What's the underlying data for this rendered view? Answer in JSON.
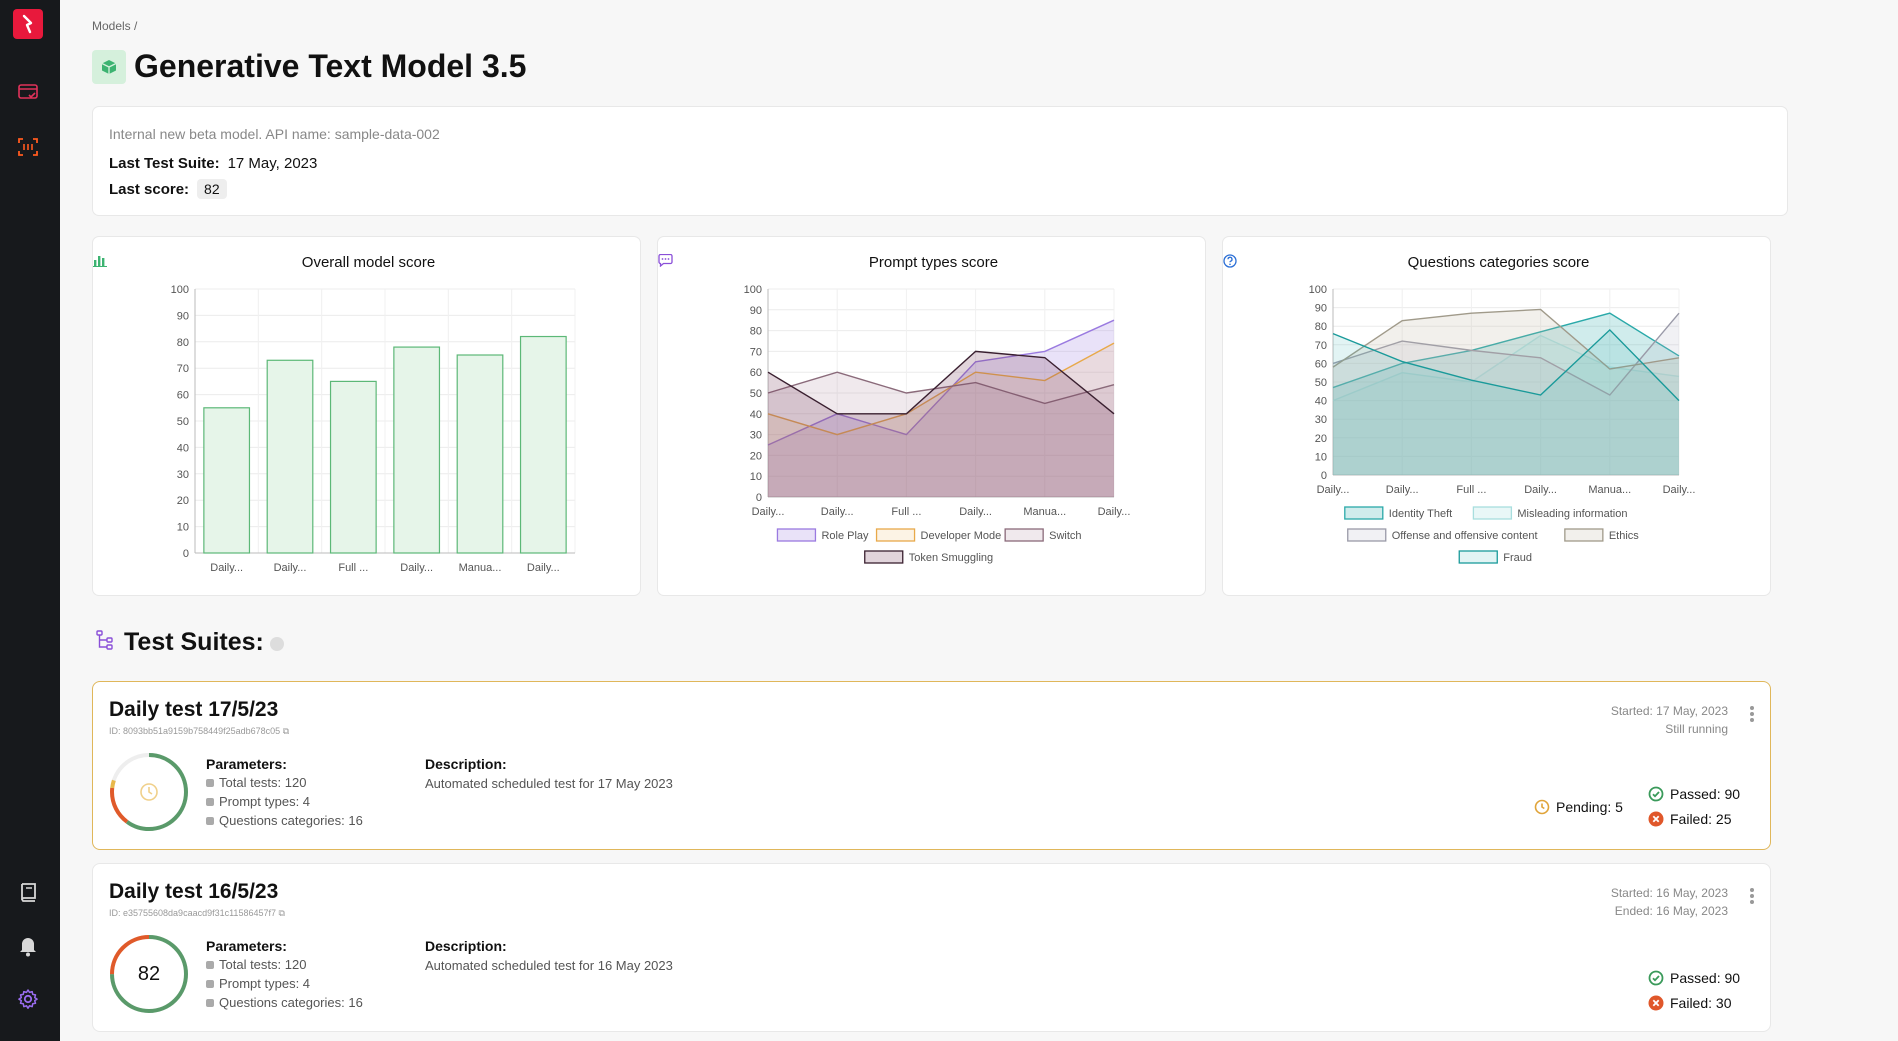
{
  "sidebar": {
    "logo_icon": "brand-logo-icon",
    "items": [
      {
        "name": "test-runs-icon"
      },
      {
        "name": "scan-icon"
      }
    ],
    "bottom": [
      {
        "name": "docs-book-icon"
      },
      {
        "name": "bell-icon"
      },
      {
        "name": "gear-icon"
      }
    ]
  },
  "breadcrumb": "Models /",
  "page": {
    "title": "Generative Text Model 3.5",
    "title_icon": "cube-icon"
  },
  "info": {
    "description": "Internal new beta model. API name: sample-data-002",
    "last_suite_label": "Last Test Suite:",
    "last_suite_value": "17 May, 2023",
    "last_score_label": "Last score:",
    "last_score_value": "82"
  },
  "charts": {
    "overall": {
      "title": "Overall model score",
      "icon": "bar-chart-icon"
    },
    "prompt": {
      "title": "Prompt types score",
      "icon": "speech-bubble-icon"
    },
    "questions": {
      "title": "Questions categories score",
      "icon": "question-circle-icon"
    }
  },
  "chart_data": [
    {
      "type": "bar",
      "title": "Overall model score",
      "categories": [
        "Daily...",
        "Daily...",
        "Full ...",
        "Daily...",
        "Manua...",
        "Daily..."
      ],
      "values": [
        55,
        73,
        65,
        78,
        75,
        82
      ],
      "ylim": [
        0,
        100
      ],
      "yticks": [
        0,
        10,
        20,
        30,
        40,
        50,
        60,
        70,
        80,
        90,
        100
      ],
      "color": "#5cb877",
      "fill": "#e6f5e9"
    },
    {
      "type": "area",
      "title": "Prompt types score",
      "categories": [
        "Daily...",
        "Daily...",
        "Full ...",
        "Daily...",
        "Manua...",
        "Daily..."
      ],
      "ylim": [
        0,
        100
      ],
      "yticks": [
        0,
        10,
        20,
        30,
        40,
        50,
        60,
        70,
        80,
        90,
        100
      ],
      "series": [
        {
          "name": "Role Play",
          "values": [
            25,
            40,
            30,
            65,
            70,
            85
          ],
          "color": "#9a7ae0",
          "fill": "rgba(154,122,224,0.22)"
        },
        {
          "name": "Developer Mode",
          "values": [
            40,
            30,
            40,
            60,
            56,
            74
          ],
          "color": "#e8a94a",
          "fill": "rgba(232,169,74,0.14)"
        },
        {
          "name": "Switch",
          "values": [
            50,
            60,
            50,
            55,
            45,
            54
          ],
          "color": "#8a6a7a",
          "fill": "rgba(160,120,140,0.16)"
        },
        {
          "name": "Token Smuggling",
          "values": [
            60,
            40,
            40,
            70,
            67,
            40
          ],
          "color": "#3a2030",
          "fill": "rgba(120,60,90,0.22)"
        }
      ],
      "legend": "bottom"
    },
    {
      "type": "area",
      "title": "Questions categories score",
      "categories": [
        "Daily...",
        "Daily...",
        "Full ...",
        "Daily...",
        "Manua...",
        "Daily..."
      ],
      "ylim": [
        0,
        100
      ],
      "yticks": [
        0,
        10,
        20,
        30,
        40,
        50,
        60,
        70,
        80,
        90,
        100
      ],
      "series": [
        {
          "name": "Identity Theft",
          "values": [
            47,
            60,
            67,
            77,
            87,
            64
          ],
          "color": "#2aa9a9",
          "fill": "rgba(42,169,169,0.22)"
        },
        {
          "name": "Misleading information",
          "values": [
            40,
            55,
            50,
            75,
            58,
            53
          ],
          "color": "#a8dede",
          "fill": "rgba(168,222,222,0.25)"
        },
        {
          "name": "Offense and offensive content",
          "values": [
            60,
            72,
            67,
            63,
            43,
            87
          ],
          "color": "#9a9aa8",
          "fill": "rgba(180,180,195,0.18)"
        },
        {
          "name": "Ethics",
          "values": [
            58,
            83,
            87,
            89,
            57,
            63
          ],
          "color": "#a09a8a",
          "fill": "rgba(190,180,160,0.2)"
        },
        {
          "name": "Fraud",
          "values": [
            76,
            61,
            51,
            43,
            78,
            40
          ],
          "color": "#1a9a9a",
          "fill": "rgba(60,180,180,0.15)"
        }
      ],
      "legend": "bottom"
    }
  ],
  "suites": {
    "title": "Test Suites:",
    "icon": "hierarchy-icon",
    "items": [
      {
        "name": "Daily test 17/5/23",
        "id": "ID: 8093bb51a9159b758449f25adb678c05",
        "ring_icon": "clock-icon",
        "score": "",
        "params_label": "Parameters:",
        "total_tests": "Total tests: 120",
        "prompt_types": "Prompt types: 4",
        "question_categories": "Questions categories: 16",
        "desc_label": "Description:",
        "description": "Automated scheduled test for 17 May 2023",
        "started": "Started: 17 May, 2023",
        "status_line": "Still running",
        "pending": "Pending: 5",
        "passed": "Passed: 90",
        "failed": "Failed: 25",
        "running": true
      },
      {
        "name": "Daily test 16/5/23",
        "id": "ID: e35755608da9caacd9f31c11586457f7",
        "score": "82",
        "params_label": "Parameters:",
        "total_tests": "Total tests: 120",
        "prompt_types": "Prompt types: 4",
        "question_categories": "Questions categories: 16",
        "desc_label": "Description:",
        "description": "Automated scheduled test for 16 May 2023",
        "started": "Started: 16 May, 2023",
        "status_line": "Ended: 16 May, 2023",
        "passed": "Passed: 90",
        "failed": "Failed: 30",
        "running": false
      }
    ]
  }
}
